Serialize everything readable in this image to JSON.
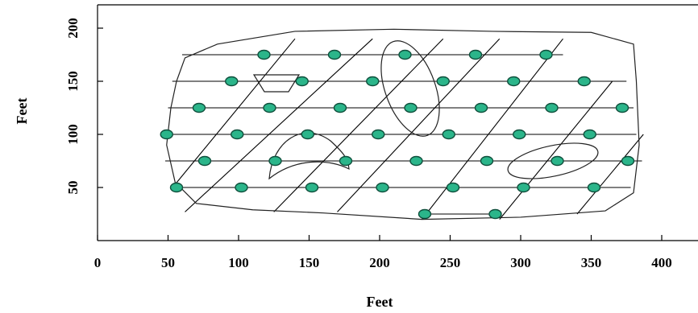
{
  "figure": {
    "xlabel": "Feet",
    "ylabel": "Feet",
    "xticks": [
      "0",
      "50",
      "100",
      "150",
      "200",
      "250",
      "300",
      "350",
      "400"
    ],
    "yticks": [
      "50",
      "100",
      "150",
      "200"
    ],
    "xlim": [
      0,
      430
    ],
    "ylim": [
      0,
      230
    ],
    "colors": {
      "sample_point": "#2bb58a",
      "sample_point_edge": "#0f4f3c",
      "lines": "#000000"
    }
  },
  "chart_data": {
    "type": "scatter",
    "x_range": [
      0,
      430
    ],
    "y_range": [
      0,
      230
    ],
    "sample_rows": [
      {
        "y": 175,
        "x": [
          118,
          168,
          218,
          268,
          318
        ]
      },
      {
        "y": 150,
        "x": [
          95,
          145,
          195,
          245,
          295,
          345
        ]
      },
      {
        "y": 125,
        "x": [
          72,
          122,
          172,
          222,
          272,
          322,
          372
        ]
      },
      {
        "y": 100,
        "x": [
          49,
          99,
          149,
          199,
          249,
          299,
          349
        ]
      },
      {
        "y": 75,
        "x": [
          76,
          126,
          176,
          226,
          276,
          326,
          376
        ]
      },
      {
        "y": 50,
        "x": [
          56,
          102,
          152,
          202,
          252,
          302,
          352
        ]
      },
      {
        "y": 25,
        "x": [
          232,
          282
        ]
      }
    ],
    "horizontal_transects_y": [
      175,
      150,
      125,
      100,
      75,
      50,
      25
    ],
    "diagonal_transects": [
      [
        [
          52,
          48
        ],
        [
          140,
          190
        ]
      ],
      [
        [
          62,
          27
        ],
        [
          195,
          190
        ]
      ],
      [
        [
          125,
          27
        ],
        [
          245,
          190
        ]
      ],
      [
        [
          170,
          27
        ],
        [
          285,
          190
        ]
      ],
      [
        [
          230,
          20
        ],
        [
          330,
          190
        ]
      ],
      [
        [
          285,
          20
        ],
        [
          365,
          150
        ]
      ],
      [
        [
          340,
          25
        ],
        [
          387,
          100
        ]
      ]
    ],
    "study_boundary": [
      [
        56,
        150
      ],
      [
        62,
        172
      ],
      [
        85,
        185
      ],
      [
        140,
        197
      ],
      [
        210,
        199
      ],
      [
        280,
        197
      ],
      [
        350,
        196
      ],
      [
        380,
        185
      ],
      [
        382,
        150
      ],
      [
        384,
        90
      ],
      [
        380,
        45
      ],
      [
        360,
        28
      ],
      [
        300,
        22
      ],
      [
        230,
        20
      ],
      [
        160,
        26
      ],
      [
        110,
        29
      ],
      [
        70,
        35
      ],
      [
        55,
        55
      ],
      [
        49,
        90
      ],
      [
        52,
        125
      ]
    ]
  }
}
